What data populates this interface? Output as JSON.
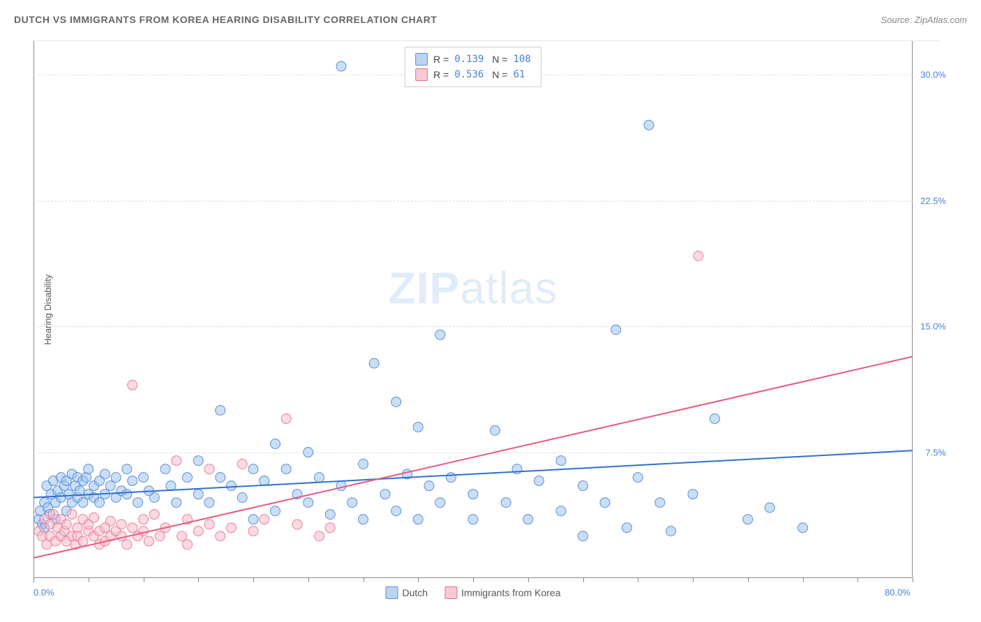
{
  "header": {
    "title": "DUTCH VS IMMIGRANTS FROM KOREA HEARING DISABILITY CORRELATION CHART",
    "source_prefix": "Source: ",
    "source": "ZipAtlas.com"
  },
  "chart": {
    "type": "scatter",
    "ylabel": "Hearing Disability",
    "xlim": [
      0,
      80
    ],
    "ylim": [
      0,
      32
    ],
    "x_tick_step": 5,
    "x_tick_labels": [
      {
        "v": 0,
        "label": "0.0%"
      },
      {
        "v": 80,
        "label": "80.0%"
      }
    ],
    "y_ticks": [
      {
        "v": 7.5,
        "label": "7.5%"
      },
      {
        "v": 15.0,
        "label": "15.0%"
      },
      {
        "v": 22.5,
        "label": "22.5%"
      },
      {
        "v": 30.0,
        "label": "30.0%"
      }
    ],
    "background_color": "#ffffff",
    "grid_color": "#dddddd",
    "marker_radius": 7,
    "marker_opacity": 0.55,
    "line_width": 2,
    "watermark": "ZIPatlas",
    "series": [
      {
        "name": "Dutch",
        "color_fill": "#9ec3ef",
        "color_stroke": "#5a8fd8",
        "line_color": "#2f6fd0",
        "r": 0.139,
        "n": 108,
        "trend": {
          "x1": 0,
          "y1": 4.8,
          "x2": 80,
          "y2": 7.6
        },
        "points": [
          [
            0.5,
            3.5
          ],
          [
            0.6,
            4.0
          ],
          [
            0.8,
            3.2
          ],
          [
            1.0,
            4.5
          ],
          [
            1.0,
            3.0
          ],
          [
            1.2,
            5.5
          ],
          [
            1.3,
            4.2
          ],
          [
            1.5,
            3.8
          ],
          [
            1.6,
            5.0
          ],
          [
            1.8,
            5.8
          ],
          [
            2.0,
            4.5
          ],
          [
            2.0,
            3.5
          ],
          [
            2.2,
            5.2
          ],
          [
            2.5,
            4.8
          ],
          [
            2.5,
            6.0
          ],
          [
            2.8,
            5.5
          ],
          [
            3.0,
            4.0
          ],
          [
            3.0,
            5.8
          ],
          [
            3.2,
            5.0
          ],
          [
            3.5,
            4.5
          ],
          [
            3.5,
            6.2
          ],
          [
            3.8,
            5.5
          ],
          [
            4.0,
            4.8
          ],
          [
            4.0,
            6.0
          ],
          [
            4.2,
            5.2
          ],
          [
            4.5,
            5.8
          ],
          [
            4.5,
            4.5
          ],
          [
            4.8,
            6.0
          ],
          [
            5.0,
            5.0
          ],
          [
            5.0,
            6.5
          ],
          [
            5.5,
            5.5
          ],
          [
            5.5,
            4.8
          ],
          [
            6.0,
            5.8
          ],
          [
            6.0,
            4.5
          ],
          [
            6.5,
            6.2
          ],
          [
            6.5,
            5.0
          ],
          [
            7.0,
            5.5
          ],
          [
            7.5,
            6.0
          ],
          [
            7.5,
            4.8
          ],
          [
            8.0,
            5.2
          ],
          [
            8.5,
            6.5
          ],
          [
            8.5,
            5.0
          ],
          [
            9.0,
            5.8
          ],
          [
            9.5,
            4.5
          ],
          [
            10.0,
            6.0
          ],
          [
            10.5,
            5.2
          ],
          [
            11.0,
            4.8
          ],
          [
            12.0,
            6.5
          ],
          [
            12.5,
            5.5
          ],
          [
            13.0,
            4.5
          ],
          [
            14.0,
            6.0
          ],
          [
            15.0,
            5.0
          ],
          [
            15.0,
            7.0
          ],
          [
            16.0,
            4.5
          ],
          [
            17.0,
            6.0
          ],
          [
            17.0,
            10.0
          ],
          [
            18.0,
            5.5
          ],
          [
            19.0,
            4.8
          ],
          [
            20.0,
            6.5
          ],
          [
            20.0,
            3.5
          ],
          [
            21.0,
            5.8
          ],
          [
            22.0,
            4.0
          ],
          [
            22.0,
            8.0
          ],
          [
            23.0,
            6.5
          ],
          [
            24.0,
            5.0
          ],
          [
            25.0,
            4.5
          ],
          [
            25.0,
            7.5
          ],
          [
            26.0,
            6.0
          ],
          [
            27.0,
            3.8
          ],
          [
            28.0,
            5.5
          ],
          [
            28.0,
            30.5
          ],
          [
            29.0,
            4.5
          ],
          [
            30.0,
            6.8
          ],
          [
            30.0,
            3.5
          ],
          [
            31.0,
            12.8
          ],
          [
            32.0,
            5.0
          ],
          [
            33.0,
            10.5
          ],
          [
            33.0,
            4.0
          ],
          [
            34.0,
            6.2
          ],
          [
            35.0,
            3.5
          ],
          [
            35.0,
            9.0
          ],
          [
            36.0,
            5.5
          ],
          [
            37.0,
            4.5
          ],
          [
            37.0,
            14.5
          ],
          [
            38.0,
            6.0
          ],
          [
            40.0,
            5.0
          ],
          [
            40.0,
            3.5
          ],
          [
            42.0,
            8.8
          ],
          [
            43.0,
            4.5
          ],
          [
            44.0,
            6.5
          ],
          [
            45.0,
            3.5
          ],
          [
            46.0,
            5.8
          ],
          [
            48.0,
            4.0
          ],
          [
            48.0,
            7.0
          ],
          [
            50.0,
            5.5
          ],
          [
            50.0,
            2.5
          ],
          [
            52.0,
            4.5
          ],
          [
            53.0,
            14.8
          ],
          [
            54.0,
            3.0
          ],
          [
            55.0,
            6.0
          ],
          [
            56.0,
            27.0
          ],
          [
            57.0,
            4.5
          ],
          [
            58.0,
            2.8
          ],
          [
            60.0,
            5.0
          ],
          [
            62.0,
            9.5
          ],
          [
            65.0,
            3.5
          ],
          [
            67.0,
            4.2
          ],
          [
            70.0,
            3.0
          ]
        ]
      },
      {
        "name": "Immigrants from Korea",
        "color_fill": "#f8bcc9",
        "color_stroke": "#ea7d9a",
        "line_color": "#e85a7f",
        "r": 0.536,
        "n": 61,
        "trend": {
          "x1": 0,
          "y1": 1.2,
          "x2": 80,
          "y2": 13.2
        },
        "points": [
          [
            0.5,
            2.8
          ],
          [
            0.8,
            2.5
          ],
          [
            1.0,
            3.5
          ],
          [
            1.2,
            2.0
          ],
          [
            1.5,
            3.2
          ],
          [
            1.5,
            2.5
          ],
          [
            1.8,
            3.8
          ],
          [
            2.0,
            2.2
          ],
          [
            2.2,
            3.0
          ],
          [
            2.5,
            2.5
          ],
          [
            2.5,
            3.5
          ],
          [
            2.8,
            2.8
          ],
          [
            3.0,
            2.2
          ],
          [
            3.0,
            3.2
          ],
          [
            3.5,
            2.5
          ],
          [
            3.5,
            3.8
          ],
          [
            3.8,
            2.0
          ],
          [
            4.0,
            3.0
          ],
          [
            4.0,
            2.5
          ],
          [
            4.5,
            3.5
          ],
          [
            4.5,
            2.2
          ],
          [
            5.0,
            2.8
          ],
          [
            5.0,
            3.2
          ],
          [
            5.5,
            2.5
          ],
          [
            5.5,
            3.6
          ],
          [
            6.0,
            2.0
          ],
          [
            6.0,
            2.8
          ],
          [
            6.5,
            3.0
          ],
          [
            6.5,
            2.2
          ],
          [
            7.0,
            3.4
          ],
          [
            7.0,
            2.5
          ],
          [
            7.5,
            2.8
          ],
          [
            8.0,
            3.2
          ],
          [
            8.0,
            2.5
          ],
          [
            8.5,
            2.0
          ],
          [
            9.0,
            3.0
          ],
          [
            9.0,
            11.5
          ],
          [
            9.5,
            2.5
          ],
          [
            10.0,
            2.8
          ],
          [
            10.0,
            3.5
          ],
          [
            10.5,
            2.2
          ],
          [
            11.0,
            3.8
          ],
          [
            11.5,
            2.5
          ],
          [
            12.0,
            3.0
          ],
          [
            13.0,
            7.0
          ],
          [
            13.5,
            2.5
          ],
          [
            14.0,
            3.5
          ],
          [
            14.0,
            2.0
          ],
          [
            15.0,
            2.8
          ],
          [
            16.0,
            3.2
          ],
          [
            16.0,
            6.5
          ],
          [
            17.0,
            2.5
          ],
          [
            18.0,
            3.0
          ],
          [
            19.0,
            6.8
          ],
          [
            20.0,
            2.8
          ],
          [
            21.0,
            3.5
          ],
          [
            23.0,
            9.5
          ],
          [
            24.0,
            3.2
          ],
          [
            26.0,
            2.5
          ],
          [
            27.0,
            3.0
          ],
          [
            60.5,
            19.2
          ]
        ]
      }
    ]
  }
}
